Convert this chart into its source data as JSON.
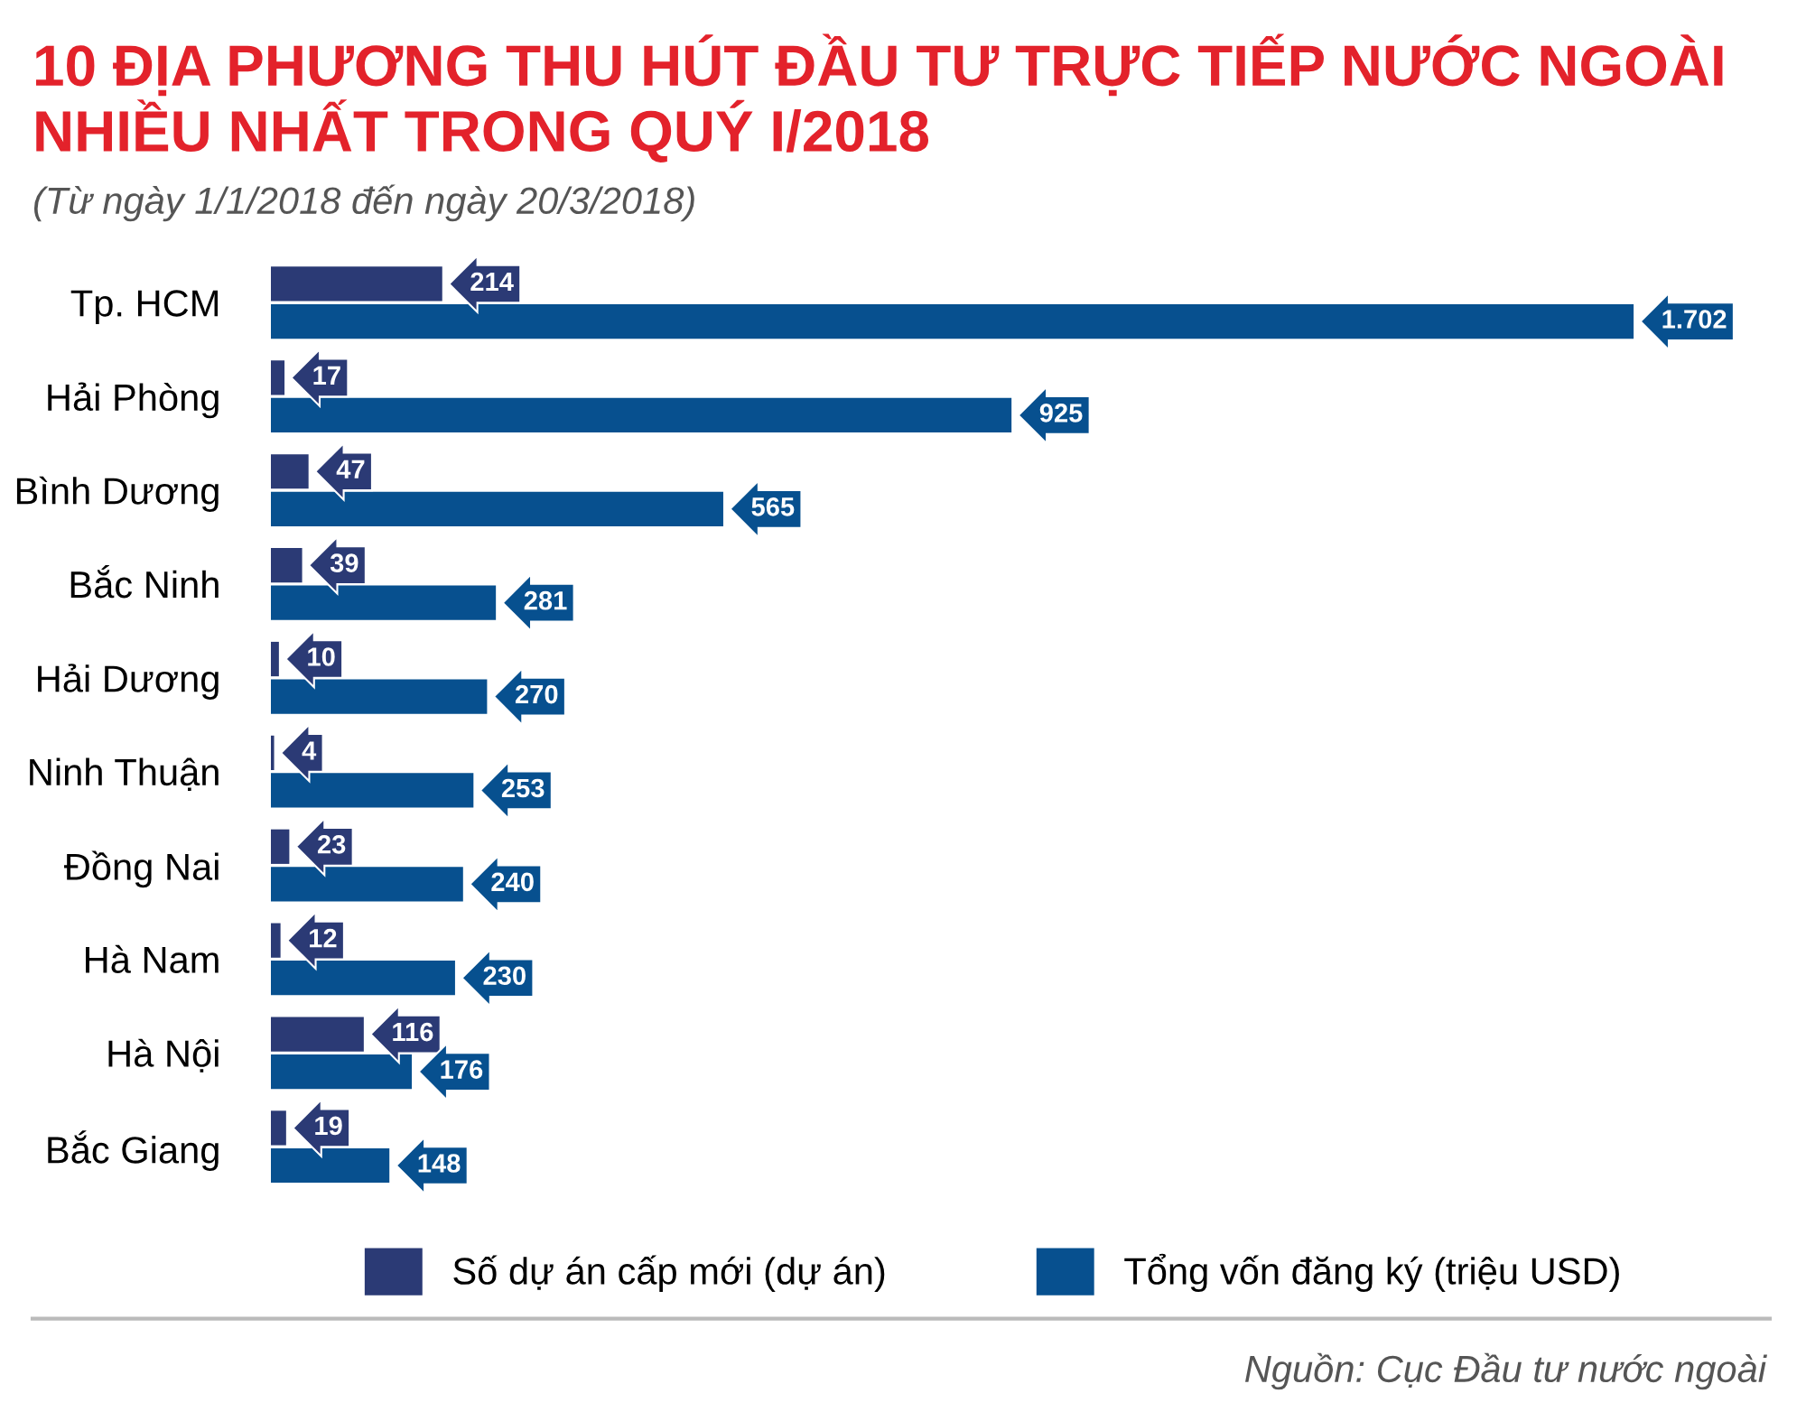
{
  "chart_data": {
    "type": "bar",
    "orientation": "horizontal",
    "title": "10 ĐỊA PHƯƠNG THU HÚT ĐẦU TƯ TRỰC TIẾP NƯỚC NGOÀI\nNHIỀU NHẤT TRONG QUÝ I/2018",
    "subtitle": "(Từ ngày 1/1/2018 đến ngày 20/3/2018)",
    "categories": [
      "Tp. HCM",
      "Hải Phòng",
      "Bình Dương",
      "Bắc Ninh",
      "Hải Dương",
      "Ninh Thuận",
      "Đồng Nai",
      "Hà Nam",
      "Hà Nội",
      "Bắc Giang"
    ],
    "series": [
      {
        "name": "Số dự án cấp mới (dự án)",
        "color": "#2b3a75",
        "values": [
          214,
          17,
          47,
          39,
          10,
          4,
          23,
          12,
          116,
          19
        ],
        "value_labels": [
          "214",
          "17",
          "47",
          "39",
          "10",
          "4",
          "23",
          "12",
          "116",
          "19"
        ]
      },
      {
        "name": "Tổng vốn đăng ký (triệu USD)",
        "color": "#07508f",
        "values": [
          1702,
          925,
          565,
          281,
          270,
          253,
          240,
          230,
          176,
          148
        ],
        "value_labels": [
          "1.702",
          "925",
          "565",
          "281",
          "270",
          "253",
          "240",
          "230",
          "176",
          "148"
        ]
      }
    ],
    "legend": "bottom",
    "grid": false,
    "tick_labels": "y",
    "annotations": [
      "Nguồn: Cục Đầu tư nước ngoài"
    ]
  }
}
